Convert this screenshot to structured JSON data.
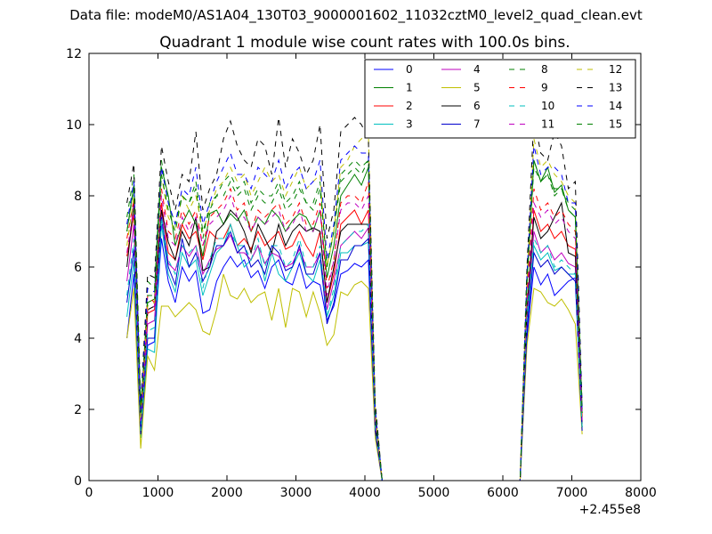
{
  "suptitle": "Data file: modeM0/AS1A04_130T03_9000001602_11032cztM0_level2_quad_clean.evt",
  "chart_data": {
    "type": "line",
    "title": "Quadrant 1 module wise count rates with 100.0s bins.",
    "xlabel": "",
    "ylabel": "",
    "x_offset_label": "+2.455e8",
    "xlim": [
      0,
      8000
    ],
    "ylim": [
      0,
      12
    ],
    "xticks": [
      0,
      1000,
      2000,
      3000,
      4000,
      5000,
      6000,
      7000,
      8000
    ],
    "yticks": [
      0,
      2,
      4,
      6,
      8,
      10,
      12
    ],
    "grid": false,
    "legend_position": "top-right",
    "legend_columns": 4,
    "x": [
      550,
      650,
      750,
      850,
      950,
      1050,
      1150,
      1250,
      1350,
      1450,
      1550,
      1650,
      1750,
      1850,
      1950,
      2050,
      2150,
      2250,
      2350,
      2450,
      2550,
      2650,
      2750,
      2850,
      2950,
      3050,
      3150,
      3250,
      3350,
      3450,
      3550,
      3650,
      3750,
      3850,
      3950,
      4050,
      4150,
      4250,
      4350,
      4450,
      4550,
      4650,
      4750,
      4850,
      4950,
      5050,
      5150,
      5250,
      5350,
      5450,
      5550,
      5650,
      5750,
      5850,
      5950,
      6050,
      6150,
      6250,
      6350,
      6450,
      6550,
      6650,
      6750,
      6850,
      6950,
      7050,
      7150
    ],
    "series": [
      {
        "name": "0",
        "color": "#0000ff",
        "dash": "solid",
        "values": [
          4.0,
          5.8,
          1.4,
          3.8,
          3.9,
          6.8,
          5.6,
          5.0,
          6.0,
          5.6,
          5.9,
          4.7,
          4.8,
          5.6,
          6.0,
          6.3,
          6.0,
          6.2,
          5.7,
          5.9,
          5.4,
          6.0,
          6.2,
          5.6,
          5.5,
          6.1,
          5.4,
          5.6,
          5.5,
          4.5,
          4.9,
          5.8,
          5.9,
          6.1,
          6.0,
          6.2,
          1.3,
          0,
          0,
          0,
          0,
          0,
          0,
          0,
          0,
          0,
          0,
          0,
          0,
          0,
          0,
          0,
          0,
          0,
          0,
          0,
          0,
          0,
          4.0,
          6.0,
          5.5,
          5.8,
          5.2,
          5.4,
          5.6,
          5.7,
          1.5
        ]
      },
      {
        "name": "1",
        "color": "#008000",
        "dash": "solid",
        "values": [
          7.0,
          8.3,
          2.0,
          5.0,
          5.1,
          8.8,
          8.0,
          6.6,
          7.2,
          7.6,
          7.2,
          6.3,
          7.5,
          7.6,
          7.2,
          7.5,
          7.3,
          7.6,
          7.0,
          7.4,
          7.2,
          7.6,
          7.4,
          7.0,
          7.3,
          7.5,
          7.4,
          7.0,
          7.6,
          5.7,
          6.6,
          8.0,
          8.3,
          8.6,
          8.3,
          8.8,
          1.9,
          0,
          0,
          0,
          0,
          0,
          0,
          0,
          0,
          0,
          0,
          0,
          0,
          0,
          0,
          0,
          0,
          0,
          0,
          0,
          0,
          0,
          5.5,
          9.0,
          8.4,
          8.8,
          8.1,
          8.3,
          7.6,
          7.4,
          1.9
        ]
      },
      {
        "name": "2",
        "color": "#ff0000",
        "dash": "solid",
        "values": [
          6.3,
          7.5,
          1.7,
          4.7,
          4.8,
          7.8,
          6.4,
          6.2,
          7.2,
          6.8,
          7.0,
          6.2,
          7.0,
          6.8,
          6.8,
          7.2,
          6.6,
          6.8,
          6.5,
          7.0,
          6.6,
          6.8,
          7.0,
          6.5,
          6.6,
          7.0,
          6.6,
          6.3,
          7.0,
          5.0,
          5.8,
          7.2,
          7.4,
          7.6,
          7.2,
          7.6,
          1.6,
          0,
          0,
          0,
          0,
          0,
          0,
          0,
          0,
          0,
          0,
          0,
          0,
          0,
          0,
          0,
          0,
          0,
          0,
          0,
          0,
          0,
          4.7,
          7.6,
          7.0,
          7.2,
          6.8,
          7.0,
          6.6,
          6.5,
          1.6
        ]
      },
      {
        "name": "3",
        "color": "#00bfbf",
        "dash": "solid",
        "values": [
          4.6,
          6.2,
          1.2,
          3.7,
          3.6,
          7.2,
          5.8,
          5.3,
          6.4,
          6.0,
          6.2,
          5.2,
          5.8,
          6.4,
          6.6,
          7.2,
          6.6,
          6.0,
          6.2,
          6.6,
          5.6,
          6.4,
          5.8,
          5.6,
          6.0,
          6.4,
          5.8,
          5.6,
          6.2,
          4.6,
          5.2,
          6.4,
          6.4,
          6.6,
          6.6,
          6.7,
          1.4,
          0,
          0,
          0,
          0,
          0,
          0,
          0,
          0,
          0,
          0,
          0,
          0,
          0,
          0,
          0,
          0,
          0,
          0,
          0,
          0,
          0,
          4.4,
          6.6,
          6.2,
          6.4,
          5.9,
          6.0,
          5.8,
          5.8,
          1.5
        ]
      },
      {
        "name": "4",
        "color": "#bf00bf",
        "dash": "solid",
        "values": [
          5.6,
          7.2,
          1.5,
          4.4,
          4.5,
          7.6,
          6.1,
          5.9,
          6.6,
          6.3,
          6.6,
          5.8,
          6.2,
          6.5,
          6.6,
          6.9,
          6.4,
          6.4,
          6.2,
          6.6,
          6.1,
          6.4,
          6.3,
          6.0,
          6.1,
          6.5,
          6.0,
          6.0,
          6.4,
          4.8,
          5.6,
          6.6,
          6.8,
          7.0,
          6.8,
          7.1,
          1.5,
          0,
          0,
          0,
          0,
          0,
          0,
          0,
          0,
          0,
          0,
          0,
          0,
          0,
          0,
          0,
          0,
          0,
          0,
          0,
          0,
          0,
          4.6,
          7.0,
          6.4,
          6.6,
          6.2,
          6.4,
          6.1,
          6.0,
          1.5
        ]
      },
      {
        "name": "5",
        "color": "#bfbf00",
        "dash": "solid",
        "values": [
          4.0,
          5.4,
          0.9,
          3.5,
          3.1,
          4.9,
          4.9,
          4.6,
          4.8,
          5.0,
          4.8,
          4.2,
          4.1,
          4.8,
          5.8,
          5.2,
          5.1,
          5.4,
          5.0,
          5.2,
          5.3,
          4.5,
          5.4,
          4.3,
          5.4,
          5.3,
          4.6,
          5.3,
          4.7,
          3.8,
          4.1,
          5.3,
          5.2,
          5.5,
          5.6,
          5.4,
          1.2,
          0,
          0,
          0,
          0,
          0,
          0,
          0,
          0,
          0,
          0,
          0,
          0,
          0,
          0,
          0,
          0,
          0,
          0,
          0,
          0,
          0,
          3.8,
          5.4,
          5.3,
          5.0,
          4.9,
          5.1,
          4.8,
          4.4,
          1.3
        ]
      },
      {
        "name": "6",
        "color": "#000000",
        "dash": "solid",
        "values": [
          6.0,
          7.8,
          1.6,
          4.8,
          4.9,
          7.6,
          6.7,
          6.2,
          7.0,
          6.6,
          7.4,
          5.9,
          6.0,
          7.0,
          7.2,
          7.6,
          7.4,
          7.0,
          6.4,
          7.2,
          6.8,
          6.4,
          7.2,
          6.6,
          7.0,
          7.2,
          7.0,
          7.1,
          7.0,
          5.0,
          6.0,
          7.0,
          7.2,
          7.2,
          7.2,
          7.2,
          1.6,
          0,
          0,
          0,
          0,
          0,
          0,
          0,
          0,
          0,
          0,
          0,
          0,
          0,
          0,
          0,
          0,
          0,
          0,
          0,
          0,
          0,
          4.8,
          7.4,
          6.8,
          7.0,
          7.4,
          7.8,
          6.4,
          6.3,
          1.5
        ]
      },
      {
        "name": "7",
        "color": "#0000cd",
        "dash": "solid",
        "values": [
          5.0,
          6.5,
          1.3,
          4.0,
          4.0,
          7.4,
          6.0,
          5.5,
          6.8,
          6.0,
          6.4,
          5.6,
          6.0,
          6.6,
          6.6,
          7.0,
          6.4,
          6.6,
          6.0,
          6.2,
          5.8,
          6.6,
          6.4,
          5.9,
          6.0,
          6.6,
          5.8,
          5.8,
          6.4,
          4.4,
          5.0,
          6.2,
          6.2,
          6.6,
          6.6,
          6.8,
          1.4,
          0,
          0,
          0,
          0,
          0,
          0,
          0,
          0,
          0,
          0,
          0,
          0,
          0,
          0,
          0,
          0,
          0,
          0,
          0,
          0,
          0,
          4.2,
          6.4,
          6.0,
          6.2,
          5.8,
          6.0,
          5.8,
          5.6,
          1.4
        ]
      },
      {
        "name": "8",
        "color": "#008000",
        "dash": "dashed",
        "values": [
          7.4,
          8.6,
          2.0,
          5.6,
          5.4,
          9.0,
          7.8,
          7.2,
          8.0,
          7.8,
          8.2,
          6.8,
          7.8,
          8.0,
          8.0,
          8.4,
          8.0,
          8.2,
          7.6,
          8.0,
          7.8,
          7.8,
          8.2,
          7.6,
          7.8,
          8.2,
          7.8,
          7.6,
          8.2,
          6.0,
          7.0,
          8.4,
          8.6,
          8.8,
          8.6,
          9.0,
          2.0,
          0,
          0,
          0,
          0,
          0,
          0,
          0,
          0,
          0,
          0,
          0,
          0,
          0,
          0,
          0,
          0,
          0,
          0,
          0,
          0,
          0,
          5.6,
          8.8,
          8.4,
          8.6,
          8.0,
          8.2,
          7.8,
          7.6,
          2.0
        ]
      },
      {
        "name": "9",
        "color": "#ff0000",
        "dash": "dashed",
        "values": [
          6.8,
          7.9,
          1.8,
          5.2,
          5.0,
          8.2,
          7.0,
          6.8,
          7.6,
          7.2,
          7.6,
          6.6,
          7.4,
          7.6,
          7.8,
          8.2,
          7.6,
          7.8,
          7.0,
          7.6,
          7.4,
          7.6,
          7.8,
          7.2,
          7.4,
          7.8,
          7.2,
          7.2,
          7.8,
          5.4,
          6.2,
          7.8,
          8.0,
          8.0,
          7.8,
          8.4,
          1.8,
          0,
          0,
          0,
          0,
          0,
          0,
          0,
          0,
          0,
          0,
          0,
          0,
          0,
          0,
          0,
          0,
          0,
          0,
          0,
          0,
          0,
          5.2,
          8.2,
          7.6,
          7.8,
          7.4,
          7.6,
          7.2,
          7.0,
          1.8
        ]
      },
      {
        "name": "10",
        "color": "#00bfbf",
        "dash": "dashed",
        "values": [
          5.2,
          6.8,
          1.4,
          4.2,
          4.3,
          7.4,
          6.2,
          5.8,
          6.6,
          6.4,
          6.6,
          5.4,
          6.2,
          6.8,
          6.8,
          7.0,
          6.6,
          6.6,
          6.2,
          6.8,
          6.0,
          6.6,
          6.6,
          6.0,
          6.2,
          6.8,
          6.0,
          6.0,
          6.6,
          4.6,
          5.4,
          6.6,
          6.8,
          7.0,
          7.0,
          7.2,
          1.5,
          0,
          0,
          0,
          0,
          0,
          0,
          0,
          0,
          0,
          0,
          0,
          0,
          0,
          0,
          0,
          0,
          0,
          0,
          0,
          0,
          0,
          4.6,
          6.8,
          6.4,
          6.6,
          6.0,
          6.2,
          6.0,
          5.8,
          1.5
        ]
      },
      {
        "name": "11",
        "color": "#bf00bf",
        "dash": "dashed",
        "values": [
          6.4,
          7.7,
          1.6,
          4.8,
          4.9,
          8.0,
          6.8,
          6.6,
          7.4,
          7.0,
          7.4,
          6.6,
          7.2,
          7.4,
          7.6,
          8.0,
          7.4,
          7.4,
          7.0,
          7.4,
          7.2,
          7.4,
          7.6,
          7.0,
          7.2,
          7.6,
          7.0,
          7.0,
          7.6,
          5.2,
          6.2,
          7.6,
          7.8,
          7.8,
          7.6,
          8.0,
          1.7,
          0,
          0,
          0,
          0,
          0,
          0,
          0,
          0,
          0,
          0,
          0,
          0,
          0,
          0,
          0,
          0,
          0,
          0,
          0,
          0,
          0,
          5.0,
          7.8,
          7.4,
          7.6,
          7.2,
          7.4,
          7.0,
          6.8,
          1.7
        ]
      },
      {
        "name": "12",
        "color": "#bfbf00",
        "dash": "dashed",
        "values": [
          6.6,
          8.0,
          1.7,
          4.9,
          5.0,
          8.6,
          7.4,
          7.0,
          8.0,
          7.6,
          8.0,
          7.0,
          7.6,
          8.2,
          8.4,
          8.8,
          8.4,
          8.6,
          8.0,
          8.4,
          8.8,
          8.4,
          8.6,
          8.0,
          8.4,
          8.8,
          8.2,
          8.4,
          8.6,
          6.0,
          7.0,
          8.8,
          9.0,
          9.4,
          9.6,
          9.8,
          1.9,
          0,
          0,
          0,
          0,
          0,
          0,
          0,
          0,
          0,
          0,
          0,
          0,
          0,
          0,
          0,
          0,
          0,
          0,
          0,
          0,
          0,
          5.6,
          9.6,
          8.8,
          9.0,
          8.6,
          8.4,
          8.0,
          7.8,
          1.9
        ]
      },
      {
        "name": "13",
        "color": "#000000",
        "dash": "dashed",
        "values": [
          7.8,
          8.9,
          2.1,
          5.8,
          5.7,
          9.4,
          8.4,
          7.6,
          8.6,
          8.4,
          9.8,
          7.6,
          8.2,
          8.6,
          9.6,
          10.1,
          9.4,
          9.0,
          8.8,
          9.6,
          9.4,
          8.6,
          10.2,
          8.8,
          9.6,
          9.2,
          8.6,
          9.0,
          10.0,
          6.8,
          7.6,
          9.8,
          10.0,
          10.2,
          10.0,
          9.6,
          2.2,
          0,
          0,
          0,
          0,
          0,
          0,
          0,
          0,
          0,
          0,
          0,
          0,
          0,
          0,
          0,
          0,
          0,
          0,
          0,
          0,
          0,
          6.0,
          10.2,
          9.2,
          9.0,
          9.8,
          9.4,
          8.2,
          8.4,
          2.1
        ]
      },
      {
        "name": "14",
        "color": "#0000ff",
        "dash": "dashed",
        "values": [
          7.2,
          8.4,
          1.9,
          5.4,
          5.3,
          8.8,
          7.8,
          7.2,
          8.2,
          8.0,
          8.8,
          7.2,
          7.8,
          8.4,
          8.8,
          9.2,
          8.6,
          8.6,
          8.2,
          8.8,
          8.6,
          8.4,
          9.0,
          8.2,
          8.6,
          8.8,
          8.2,
          8.4,
          9.0,
          6.2,
          7.2,
          9.0,
          9.2,
          9.4,
          9.2,
          9.2,
          2.0,
          0,
          0,
          0,
          0,
          0,
          0,
          0,
          0,
          0,
          0,
          0,
          0,
          0,
          0,
          0,
          0,
          0,
          0,
          0,
          0,
          0,
          5.8,
          9.4,
          8.6,
          8.8,
          8.8,
          8.6,
          7.8,
          7.8,
          2.0
        ]
      },
      {
        "name": "15",
        "color": "#008000",
        "dash": "dashed",
        "values": [
          7.0,
          8.2,
          1.9,
          5.2,
          5.2,
          8.6,
          7.6,
          7.0,
          8.0,
          7.8,
          8.4,
          7.0,
          7.6,
          8.0,
          8.4,
          8.6,
          8.2,
          8.4,
          7.8,
          8.2,
          8.0,
          8.0,
          8.4,
          7.8,
          8.0,
          8.4,
          7.8,
          7.8,
          8.4,
          6.0,
          7.0,
          8.6,
          8.8,
          9.0,
          8.8,
          9.0,
          1.9,
          0,
          0,
          0,
          0,
          0,
          0,
          0,
          0,
          0,
          0,
          0,
          0,
          0,
          0,
          0,
          0,
          0,
          0,
          0,
          0,
          0,
          5.6,
          9.0,
          8.4,
          8.6,
          8.2,
          8.2,
          7.6,
          7.4,
          1.9
        ]
      }
    ]
  }
}
